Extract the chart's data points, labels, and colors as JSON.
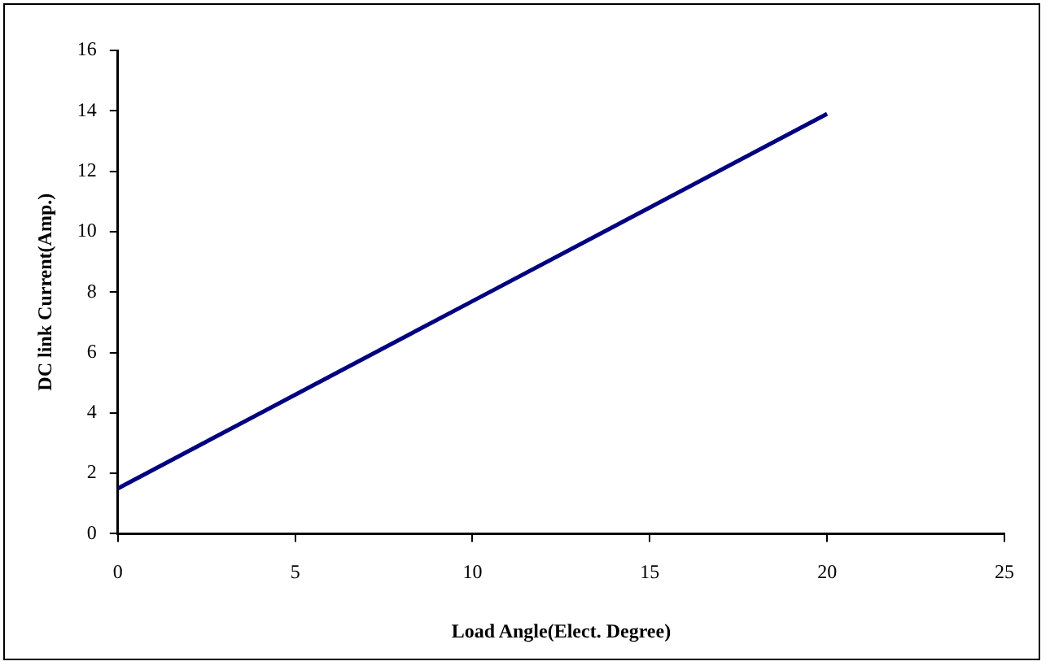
{
  "chart_data": {
    "type": "line",
    "xlabel": "Load Angle(Elect. Degree)",
    "ylabel": "DC link Current(Amp.)",
    "x": [
      0,
      5,
      10,
      15,
      20
    ],
    "series": [
      {
        "color": "#000080",
        "values": [
          1.5,
          4.6,
          7.7,
          10.8,
          13.9
        ]
      }
    ],
    "xlim": [
      0,
      25
    ],
    "xticks": [
      0,
      5,
      10,
      15,
      20,
      25
    ],
    "ylim": [
      0,
      16
    ],
    "yticks": [
      0,
      2,
      4,
      6,
      8,
      10,
      12,
      14,
      16
    ],
    "grid": false,
    "legend": false,
    "marker": "none",
    "line_style": "solid"
  }
}
